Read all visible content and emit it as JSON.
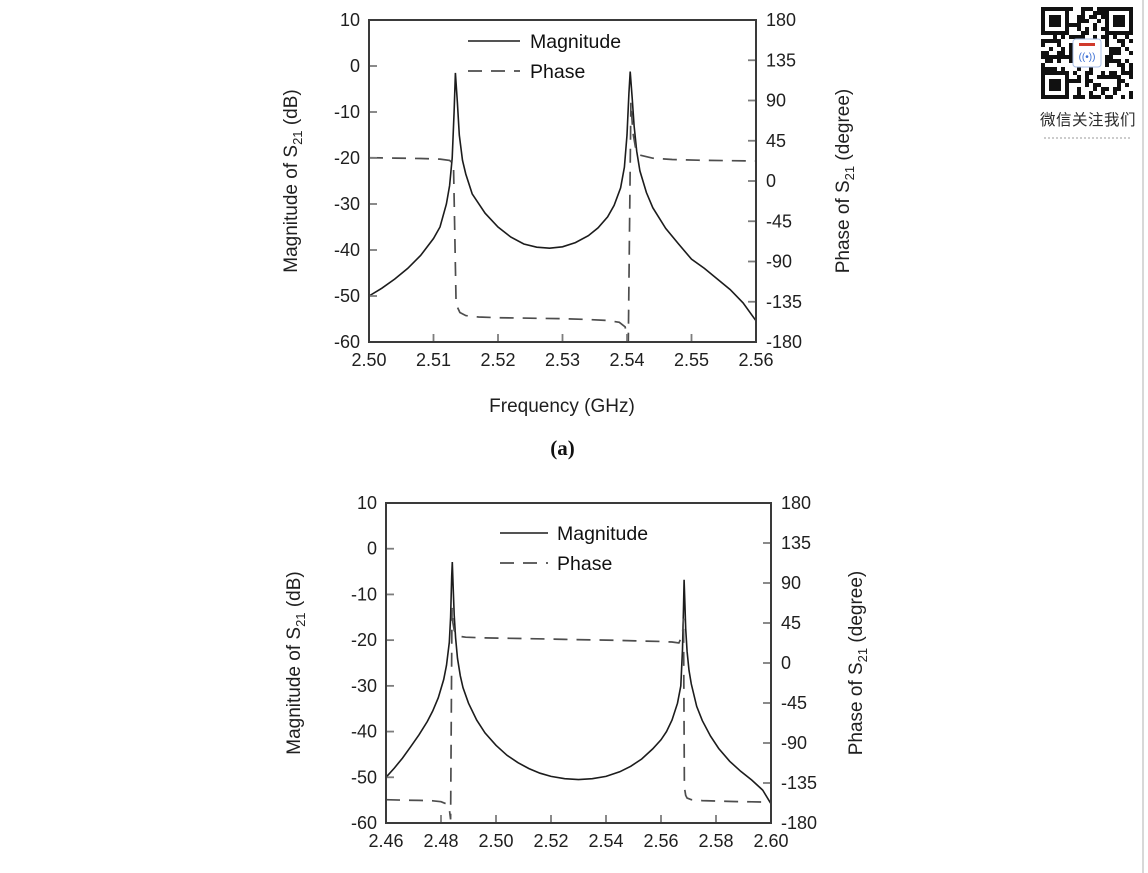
{
  "page": {
    "captions": {
      "a": "(a)"
    },
    "qr": {
      "caption": "微信关注我们"
    }
  },
  "chart_data": [
    {
      "id": "a",
      "type": "line",
      "xlabel": "Frequency (GHz)",
      "ylabel_left": {
        "prefix": "Magnitude of S",
        "sub": "21",
        "suffix": " (dB)"
      },
      "ylabel_right": {
        "prefix": "Phase of S",
        "sub": "21",
        "suffix": " (degree)"
      },
      "x_range": [
        2.5,
        2.56
      ],
      "x_ticks": [
        "2.50",
        "2.51",
        "2.52",
        "2.53",
        "2.54",
        "2.55",
        "2.56"
      ],
      "left_range": [
        -60,
        10
      ],
      "left_ticks": [
        10,
        0,
        -10,
        -20,
        -30,
        -40,
        -50,
        -60
      ],
      "right_range": [
        -180,
        180
      ],
      "right_ticks": [
        180,
        135,
        90,
        45,
        0,
        -45,
        -90,
        -135,
        -180
      ],
      "grid": false,
      "legend_position": "top-center-inside",
      "series": [
        {
          "name": "Magnitude",
          "axis": "left",
          "style": "solid",
          "points": [
            [
              2.5,
              -50
            ],
            [
              2.502,
              -48.3
            ],
            [
              2.504,
              -46.3
            ],
            [
              2.506,
              -44
            ],
            [
              2.508,
              -41.2
            ],
            [
              2.51,
              -37.5
            ],
            [
              2.511,
              -35
            ],
            [
              2.512,
              -30
            ],
            [
              2.5125,
              -26
            ],
            [
              2.5129,
              -20
            ],
            [
              2.5132,
              -10
            ],
            [
              2.5134,
              -1.5
            ],
            [
              2.5137,
              -8
            ],
            [
              2.514,
              -15
            ],
            [
              2.5145,
              -20.5
            ],
            [
              2.515,
              -23.5
            ],
            [
              2.516,
              -27.8
            ],
            [
              2.518,
              -32
            ],
            [
              2.52,
              -35
            ],
            [
              2.522,
              -37.2
            ],
            [
              2.524,
              -38.7
            ],
            [
              2.526,
              -39.4
            ],
            [
              2.528,
              -39.6
            ],
            [
              2.53,
              -39.3
            ],
            [
              2.532,
              -38.4
            ],
            [
              2.534,
              -36.9
            ],
            [
              2.5355,
              -35.2
            ],
            [
              2.537,
              -32.8
            ],
            [
              2.538,
              -30.3
            ],
            [
              2.539,
              -26.5
            ],
            [
              2.5396,
              -22
            ],
            [
              2.54,
              -15
            ],
            [
              2.5403,
              -6
            ],
            [
              2.5405,
              -1.2
            ],
            [
              2.5408,
              -7
            ],
            [
              2.5411,
              -13
            ],
            [
              2.5415,
              -18.5
            ],
            [
              2.542,
              -22.8
            ],
            [
              2.543,
              -27.5
            ],
            [
              2.544,
              -30.8
            ],
            [
              2.546,
              -35.3
            ],
            [
              2.548,
              -38.7
            ],
            [
              2.55,
              -42
            ],
            [
              2.552,
              -44
            ],
            [
              2.554,
              -46.3
            ],
            [
              2.556,
              -48.6
            ],
            [
              2.558,
              -51.5
            ],
            [
              2.56,
              -55.4
            ]
          ]
        },
        {
          "name": "Phase",
          "axis": "right",
          "style": "dashed",
          "points": [
            [
              2.5,
              26
            ],
            [
              2.504,
              25.6
            ],
            [
              2.508,
              25.2
            ],
            [
              2.511,
              24.5
            ],
            [
              2.5125,
              23
            ],
            [
              2.5131,
              19
            ],
            [
              2.5135,
              -138
            ],
            [
              2.5141,
              -147
            ],
            [
              2.515,
              -150.5
            ],
            [
              2.517,
              -152
            ],
            [
              2.52,
              -152.8
            ],
            [
              2.525,
              -153.4
            ],
            [
              2.53,
              -154
            ],
            [
              2.534,
              -154.8
            ],
            [
              2.537,
              -156
            ],
            [
              2.5388,
              -158
            ],
            [
              2.5397,
              -163
            ],
            [
              2.5402,
              -180
            ],
            [
              2.5406,
              88
            ],
            [
              2.5409,
              55
            ],
            [
              2.5413,
              38
            ],
            [
              2.542,
              29
            ],
            [
              2.544,
              25.5
            ],
            [
              2.547,
              24
            ],
            [
              2.551,
              23.3
            ],
            [
              2.555,
              22.8
            ],
            [
              2.56,
              22.4
            ]
          ]
        }
      ]
    },
    {
      "id": "b",
      "type": "line",
      "xlabel": "",
      "ylabel_left": {
        "prefix": "Magnitude of S",
        "sub": "21",
        "suffix": " (dB)"
      },
      "ylabel_right": {
        "prefix": "Phase of S",
        "sub": "21",
        "suffix": " (degree)"
      },
      "x_range": [
        2.46,
        2.6
      ],
      "x_ticks": [
        "2.46",
        "2.48",
        "2.50",
        "2.52",
        "2.54",
        "2.56",
        "2.58",
        "2.60"
      ],
      "left_range": [
        -60,
        10
      ],
      "left_ticks": [
        10,
        0,
        -10,
        -20,
        -30,
        -40,
        -50,
        -60
      ],
      "right_range": [
        -180,
        180
      ],
      "right_ticks": [
        180,
        135,
        90,
        45,
        0,
        -45,
        -90,
        -135,
        -180
      ],
      "grid": false,
      "legend_position": "top-center-inside",
      "series": [
        {
          "name": "Magnitude",
          "axis": "left",
          "style": "solid",
          "points": [
            [
              2.46,
              -50
            ],
            [
              2.463,
              -48
            ],
            [
              2.466,
              -45.8
            ],
            [
              2.469,
              -43.3
            ],
            [
              2.472,
              -40.7
            ],
            [
              2.475,
              -37.8
            ],
            [
              2.477,
              -35.5
            ],
            [
              2.479,
              -32.6
            ],
            [
              2.481,
              -28.6
            ],
            [
              2.482,
              -25.5
            ],
            [
              2.483,
              -20.5
            ],
            [
              2.4835,
              -15
            ],
            [
              2.4839,
              -6
            ],
            [
              2.4841,
              -2.9
            ],
            [
              2.4844,
              -8
            ],
            [
              2.4848,
              -14.5
            ],
            [
              2.4853,
              -19.5
            ],
            [
              2.486,
              -24
            ],
            [
              2.487,
              -27.8
            ],
            [
              2.488,
              -30.4
            ],
            [
              2.49,
              -33.8
            ],
            [
              2.493,
              -37.5
            ],
            [
              2.496,
              -40.3
            ],
            [
              2.5,
              -43
            ],
            [
              2.504,
              -45.2
            ],
            [
              2.508,
              -46.8
            ],
            [
              2.512,
              -48.1
            ],
            [
              2.516,
              -49.1
            ],
            [
              2.52,
              -49.8
            ],
            [
              2.525,
              -50.3
            ],
            [
              2.53,
              -50.5
            ],
            [
              2.535,
              -50.3
            ],
            [
              2.54,
              -49.8
            ],
            [
              2.545,
              -48.8
            ],
            [
              2.549,
              -47.6
            ],
            [
              2.553,
              -46
            ],
            [
              2.557,
              -43.8
            ],
            [
              2.56,
              -41.8
            ],
            [
              2.562,
              -40
            ],
            [
              2.564,
              -37.5
            ],
            [
              2.566,
              -33.8
            ],
            [
              2.5672,
              -30
            ],
            [
              2.5678,
              -22
            ],
            [
              2.5682,
              -13
            ],
            [
              2.5684,
              -6.8
            ],
            [
              2.5687,
              -12
            ],
            [
              2.569,
              -17.5
            ],
            [
              2.5695,
              -22.5
            ],
            [
              2.5702,
              -26.6
            ],
            [
              2.571,
              -29.6
            ],
            [
              2.573,
              -34.5
            ],
            [
              2.575,
              -37.6
            ],
            [
              2.578,
              -41
            ],
            [
              2.581,
              -43.7
            ],
            [
              2.585,
              -46.5
            ],
            [
              2.589,
              -48.7
            ],
            [
              2.593,
              -50.6
            ],
            [
              2.597,
              -52.8
            ],
            [
              2.6,
              -55.8
            ]
          ]
        },
        {
          "name": "Phase",
          "axis": "right",
          "style": "dashed",
          "points": [
            [
              2.46,
              -153.8
            ],
            [
              2.466,
              -154.2
            ],
            [
              2.472,
              -154.6
            ],
            [
              2.477,
              -155
            ],
            [
              2.48,
              -156
            ],
            [
              2.482,
              -158.5
            ],
            [
              2.483,
              -164
            ],
            [
              2.4835,
              -176
            ],
            [
              2.484,
              62
            ],
            [
              2.4843,
              46
            ],
            [
              2.4848,
              37
            ],
            [
              2.4855,
              32
            ],
            [
              2.4865,
              30
            ],
            [
              2.489,
              29
            ],
            [
              2.495,
              28.4
            ],
            [
              2.505,
              27.8
            ],
            [
              2.515,
              27.2
            ],
            [
              2.525,
              26.6
            ],
            [
              2.535,
              26
            ],
            [
              2.545,
              25.4
            ],
            [
              2.553,
              24.8
            ],
            [
              2.56,
              24.2
            ],
            [
              2.564,
              23.6
            ],
            [
              2.5665,
              22.5
            ],
            [
              2.5678,
              32
            ],
            [
              2.5682,
              50
            ],
            [
              2.5685,
              -140
            ],
            [
              2.569,
              -149
            ],
            [
              2.5695,
              -152
            ],
            [
              2.571,
              -153.8
            ],
            [
              2.575,
              -154.8
            ],
            [
              2.58,
              -155.3
            ],
            [
              2.586,
              -155.8
            ],
            [
              2.593,
              -156.2
            ],
            [
              2.6,
              -156.6
            ]
          ]
        }
      ]
    }
  ]
}
